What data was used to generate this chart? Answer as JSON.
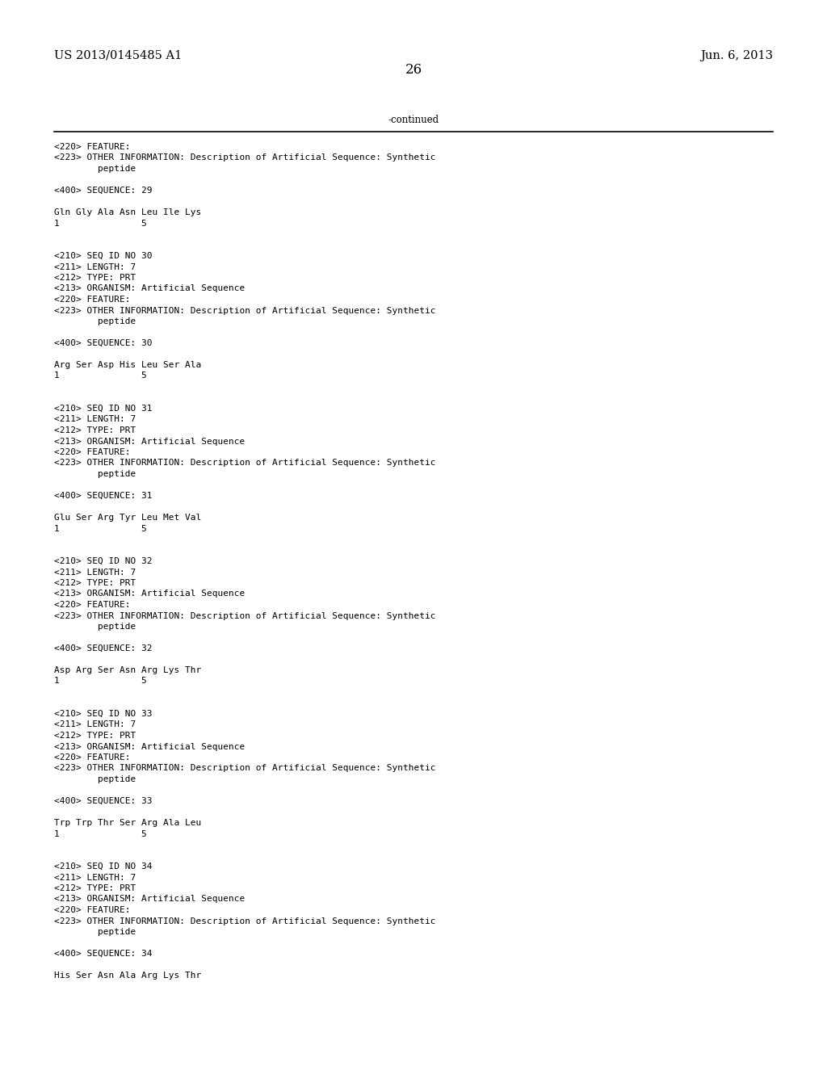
{
  "bg_color": "#ffffff",
  "text_color": "#000000",
  "header_left": "US 2013/0145485 A1",
  "header_right": "Jun. 6, 2013",
  "page_number": "26",
  "continued_label": "-continued",
  "font_size_header": 10.5,
  "font_size_body": 8.5,
  "font_size_mono": 8.0,
  "font_size_page": 12,
  "content": [
    "<220> FEATURE:",
    "<223> OTHER INFORMATION: Description of Artificial Sequence: Synthetic",
    "        peptide",
    "",
    "<400> SEQUENCE: 29",
    "",
    "Gln Gly Ala Asn Leu Ile Lys",
    "1               5",
    "",
    "",
    "<210> SEQ ID NO 30",
    "<211> LENGTH: 7",
    "<212> TYPE: PRT",
    "<213> ORGANISM: Artificial Sequence",
    "<220> FEATURE:",
    "<223> OTHER INFORMATION: Description of Artificial Sequence: Synthetic",
    "        peptide",
    "",
    "<400> SEQUENCE: 30",
    "",
    "Arg Ser Asp His Leu Ser Ala",
    "1               5",
    "",
    "",
    "<210> SEQ ID NO 31",
    "<211> LENGTH: 7",
    "<212> TYPE: PRT",
    "<213> ORGANISM: Artificial Sequence",
    "<220> FEATURE:",
    "<223> OTHER INFORMATION: Description of Artificial Sequence: Synthetic",
    "        peptide",
    "",
    "<400> SEQUENCE: 31",
    "",
    "Glu Ser Arg Tyr Leu Met Val",
    "1               5",
    "",
    "",
    "<210> SEQ ID NO 32",
    "<211> LENGTH: 7",
    "<212> TYPE: PRT",
    "<213> ORGANISM: Artificial Sequence",
    "<220> FEATURE:",
    "<223> OTHER INFORMATION: Description of Artificial Sequence: Synthetic",
    "        peptide",
    "",
    "<400> SEQUENCE: 32",
    "",
    "Asp Arg Ser Asn Arg Lys Thr",
    "1               5",
    "",
    "",
    "<210> SEQ ID NO 33",
    "<211> LENGTH: 7",
    "<212> TYPE: PRT",
    "<213> ORGANISM: Artificial Sequence",
    "<220> FEATURE:",
    "<223> OTHER INFORMATION: Description of Artificial Sequence: Synthetic",
    "        peptide",
    "",
    "<400> SEQUENCE: 33",
    "",
    "Trp Trp Thr Ser Arg Ala Leu",
    "1               5",
    "",
    "",
    "<210> SEQ ID NO 34",
    "<211> LENGTH: 7",
    "<212> TYPE: PRT",
    "<213> ORGANISM: Artificial Sequence",
    "<220> FEATURE:",
    "<223> OTHER INFORMATION: Description of Artificial Sequence: Synthetic",
    "        peptide",
    "",
    "<400> SEQUENCE: 34",
    "",
    "His Ser Asn Ala Arg Lys Thr"
  ]
}
